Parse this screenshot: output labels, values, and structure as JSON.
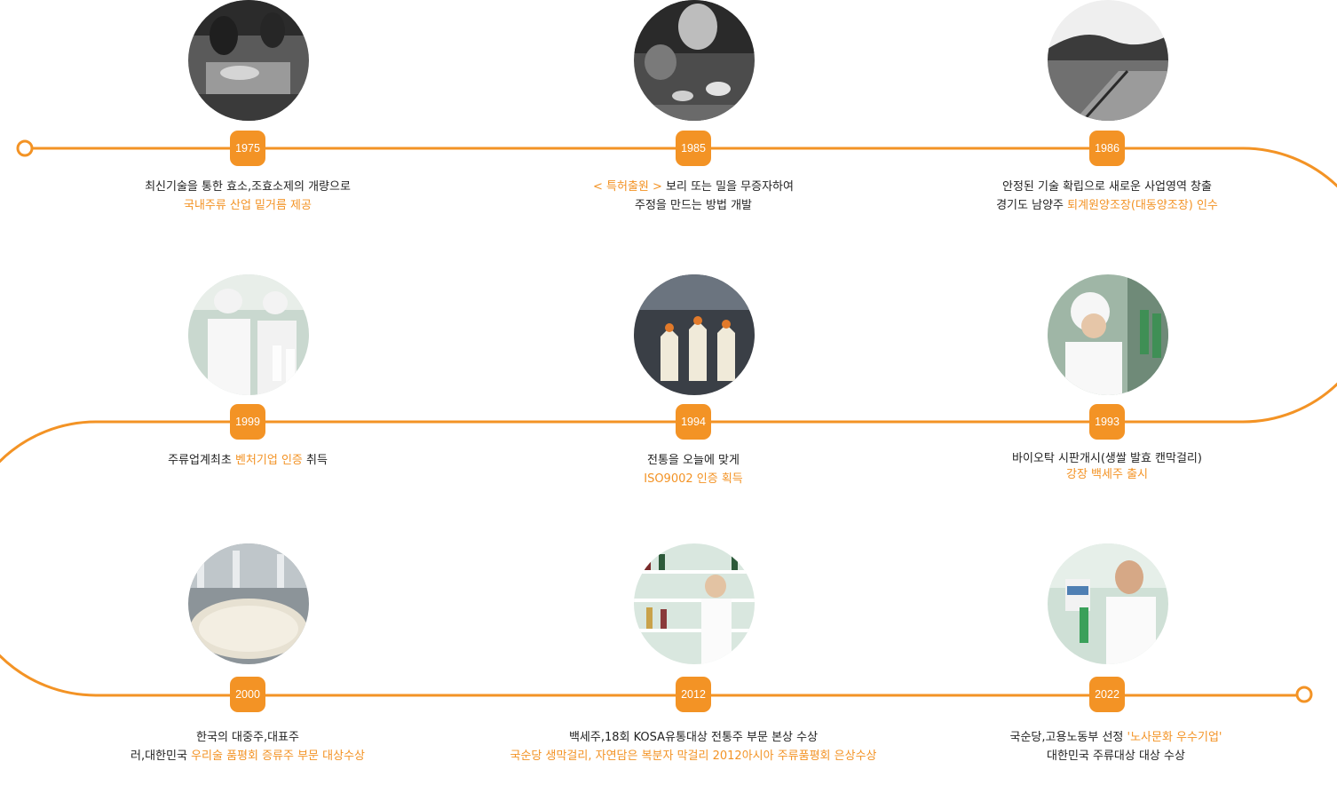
{
  "colors": {
    "accent": "#f39325",
    "text": "#222222"
  },
  "milestones": [
    {
      "year": "1975",
      "photo": "factory-workers-bw-photo",
      "l1": [
        "최신기술을 통한 효소,조효소제의 개량으로",
        "",
        ""
      ],
      "l2": [
        "",
        "국내주류 산업 밑거름 제공",
        ""
      ]
    },
    {
      "year": "1985",
      "photo": "workers-bowls-bw-photo",
      "l1": [
        "",
        "< 특허출원 >",
        " 보리 또는 밀을 무증자하여"
      ],
      "l2": [
        "주정을 만드는 방법  개발",
        "",
        ""
      ]
    },
    {
      "year": "1986",
      "photo": "brewery-site-bw-photo",
      "l1": [
        "안정된 기술 확립으로 새로운 사업영역 창출",
        "",
        ""
      ],
      "l2": [
        "경기도 남양주 ",
        "퇴계원양조장(대동양조장) 인수",
        ""
      ]
    },
    {
      "year": "1993",
      "photo": "lab-worker-photo",
      "l1": [
        "바이오탁 시판개시(생쌀 발효 캔막걸리)",
        "",
        ""
      ],
      "l2": [
        "",
        "강장 백세주 출시",
        ""
      ]
    },
    {
      "year": "1994",
      "photo": "bottling-line-photo",
      "l1": [
        "전통을 오늘에 맞게",
        "",
        ""
      ],
      "l2": [
        "",
        "ISO9002 인증 획득",
        ""
      ]
    },
    {
      "year": "1999",
      "photo": "inspection-staff-photo",
      "l1": [
        "주류업계최초 ",
        "벤처기업 인증",
        " 취득"
      ],
      "l2": [
        "",
        "",
        ""
      ]
    },
    {
      "year": "2000",
      "photo": "fermentation-tank-photo",
      "l1": [
        "한국의 대중주,대표주",
        "",
        ""
      ],
      "l2": [
        "러,대한민국 ",
        "우리술 품평회 증류주 부문 대상수상",
        ""
      ]
    },
    {
      "year": "2012",
      "photo": "researcher-bottles-photo",
      "l1": [
        "백세주,18회 KOSA유통대상 전통주 부문 본상 수상",
        "",
        ""
      ],
      "l2": [
        "",
        "국순당 생막걸리, 자연담은 복분자 막걸리 2012아시아 주류품평회 은상수상",
        ""
      ]
    },
    {
      "year": "2022",
      "photo": "smiling-scientist-photo",
      "l1": [
        "국순당,고용노동부 선정 ",
        "'노사문화 우수기업'",
        ""
      ],
      "l2": [
        "대한민국 주류대상 대상 수상",
        "",
        ""
      ]
    }
  ]
}
